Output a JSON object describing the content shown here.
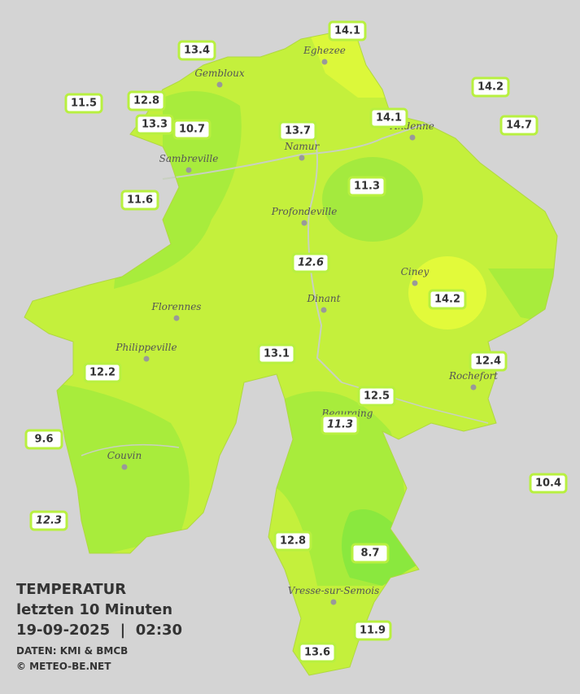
{
  "map": {
    "title": "TEMPERATUR",
    "subtitle": "letzten 10 Minuten",
    "datetime": "19-09-2025  |  02:30",
    "source": "DATEN: KMI & BMCB",
    "credit": "© METEO-BE.NET",
    "cities": [
      "Eghezee",
      "Gembloux",
      "Andenne",
      "Namur",
      "Sambreville",
      "Profondeville",
      "Ciney",
      "Dinant",
      "Florennes",
      "Philippeville",
      "Rochefort",
      "Beauraing",
      "Couvin",
      "Vresse-sur-Semois"
    ],
    "stations": [
      {
        "value": "14.1"
      },
      {
        "value": "13.4"
      },
      {
        "value": "11.5"
      },
      {
        "value": "12.8"
      },
      {
        "value": "13.3"
      },
      {
        "value": "10.7"
      },
      {
        "value": "13.7"
      },
      {
        "value": "14.1"
      },
      {
        "value": "14.2"
      },
      {
        "value": "14.7"
      },
      {
        "value": "11.6"
      },
      {
        "value": "11.3"
      },
      {
        "value": "12.6",
        "italic": true
      },
      {
        "value": "14.2"
      },
      {
        "value": "13.1"
      },
      {
        "value": "12.2"
      },
      {
        "value": "12.4"
      },
      {
        "value": "12.5"
      },
      {
        "value": "11.3",
        "italic": true
      },
      {
        "value": "9.6"
      },
      {
        "value": "10.4"
      },
      {
        "value": "12.3",
        "italic": true
      },
      {
        "value": "12.8"
      },
      {
        "value": "8.7"
      },
      {
        "value": "11.9"
      },
      {
        "value": "13.6"
      }
    ]
  }
}
